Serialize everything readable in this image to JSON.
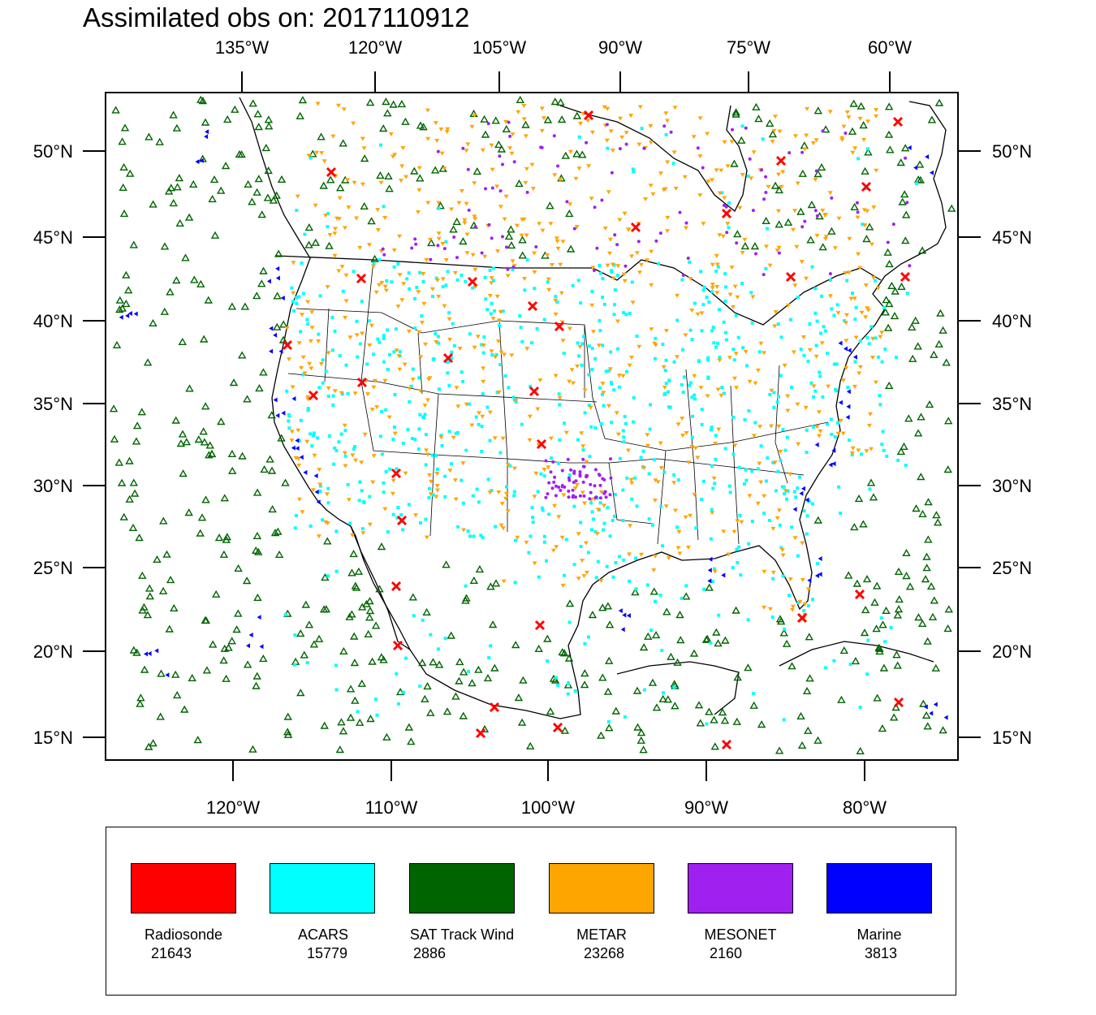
{
  "title": "Assimilated obs on: 2017110912",
  "axes": {
    "top_ticks": [
      "135°W",
      "120°W",
      "105°W",
      "90°W",
      "75°W",
      "60°W"
    ],
    "bottom_ticks": [
      "120°W",
      "110°W",
      "100°W",
      "90°W",
      "80°W"
    ],
    "lat_ticks": [
      "50°N",
      "45°N",
      "40°N",
      "35°N",
      "30°N",
      "25°N",
      "20°N",
      "15°N"
    ]
  },
  "legend": [
    {
      "name": "Radiosonde",
      "count": "21643",
      "color": "#ff0000"
    },
    {
      "name": "ACARS",
      "count": "15779",
      "color": "#00ffff"
    },
    {
      "name": "SAT Track Wind",
      "count": "2886",
      "color": "#006400"
    },
    {
      "name": "METAR",
      "count": "23268",
      "color": "#ffa500"
    },
    {
      "name": "MESONET",
      "count": "2160",
      "color": "#a020f0"
    },
    {
      "name": "Marine",
      "count": "3813",
      "color": "#0000ff"
    }
  ],
  "map": {
    "region": "Continental United States, southern Canada, Mexico, Gulf of Mexico and Caribbean",
    "lon_range": [
      -128,
      -73
    ],
    "lat_range": [
      14,
      54
    ]
  }
}
